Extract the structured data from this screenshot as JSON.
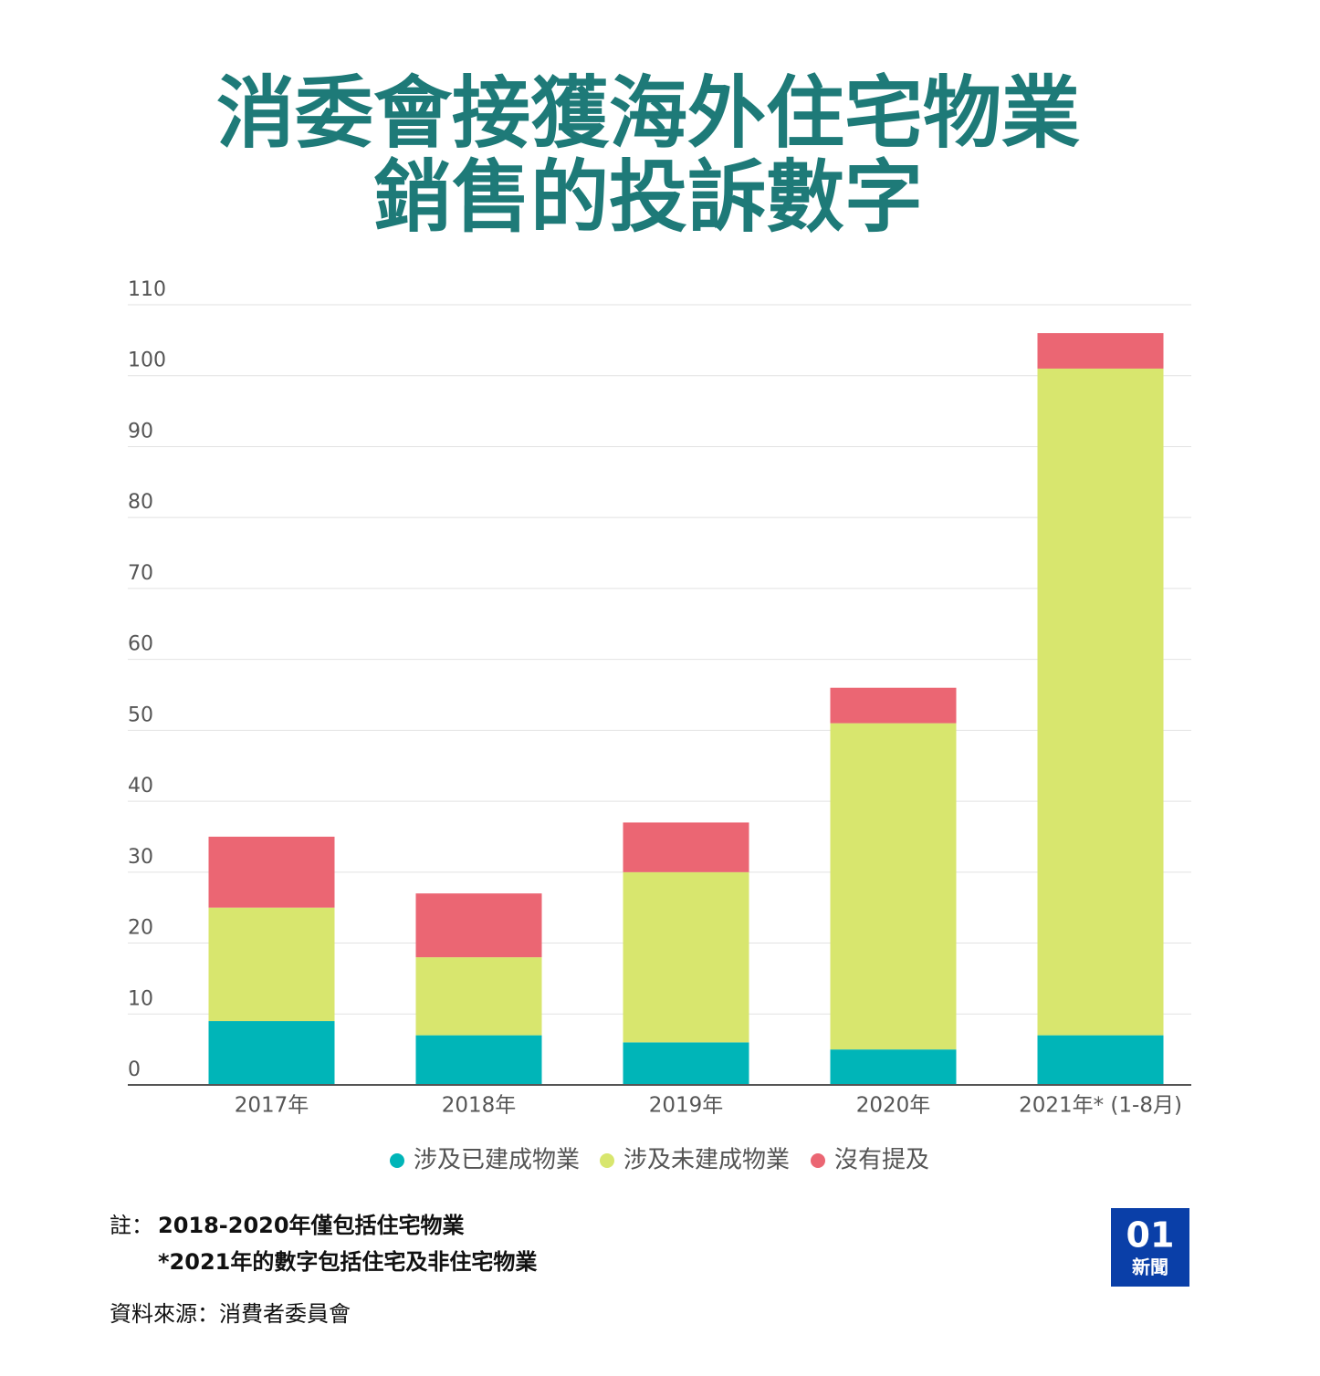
{
  "chart_data": {
    "type": "stacked_bar",
    "title": [
      "消委會接獲海外住宅物業",
      "銷售的投訴數字"
    ],
    "categories": [
      "2017年",
      "2018年",
      "2019年",
      "2020年",
      "2021年* (1-8月)"
    ],
    "series": [
      {
        "name": "涉及已建成物業",
        "color": "#00b5b8",
        "values": [
          9,
          7,
          6,
          5,
          7
        ]
      },
      {
        "name": "涉及未建成物業",
        "color": "#d8e66e",
        "values": [
          16,
          11,
          24,
          46,
          94
        ]
      },
      {
        "name": "沒有提及",
        "color": "#eb6673",
        "values": [
          10,
          9,
          7,
          5,
          5
        ]
      }
    ],
    "ylim": [
      0,
      110
    ],
    "yticks": [
      0,
      10,
      20,
      30,
      40,
      50,
      60,
      70,
      80,
      90,
      100,
      110
    ],
    "grid": true,
    "note_label": "註：",
    "notes": [
      "2018-2020年僅包括住宅物業",
      "*2021年的數字包括住宅及非住宅物業"
    ],
    "source": "資料來源：消費者委員會",
    "logo": {
      "mark": "01",
      "text": "新聞"
    }
  }
}
